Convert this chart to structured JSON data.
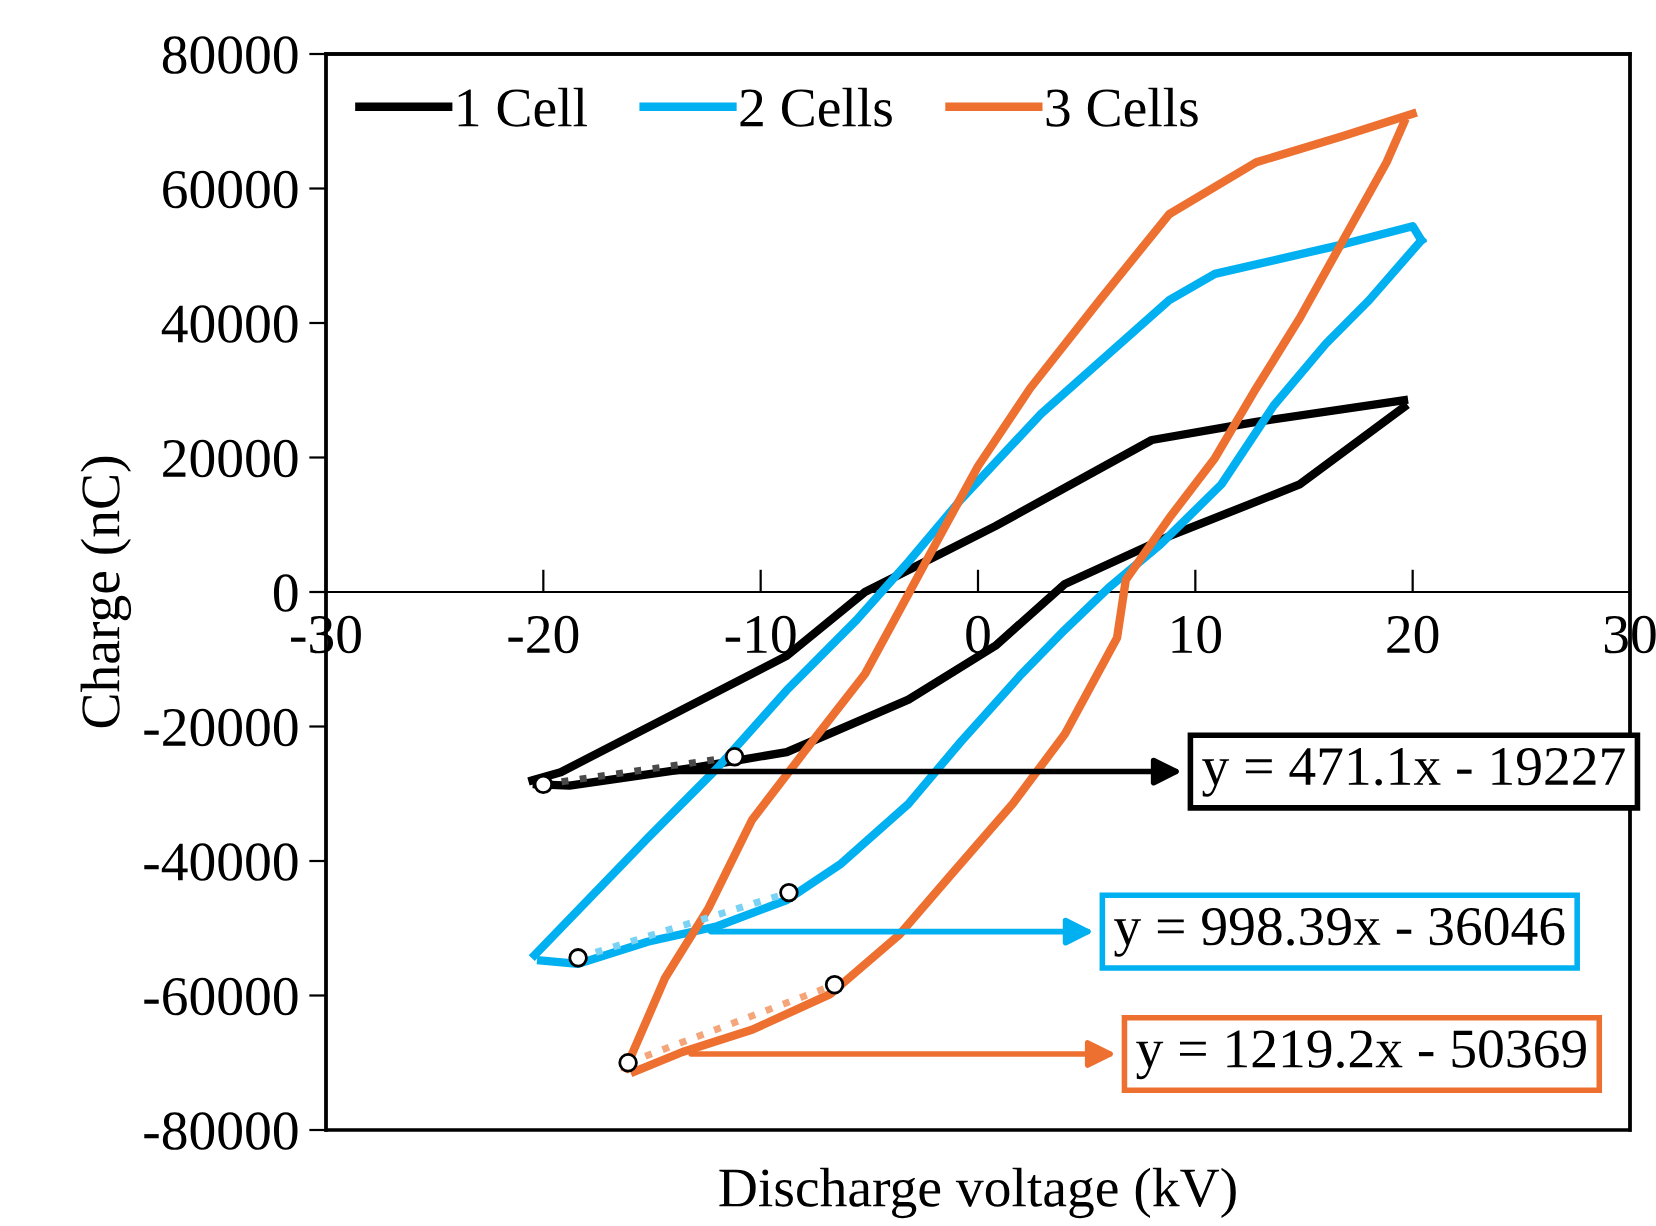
{
  "chart_data": {
    "type": "line",
    "xlabel": "Discharge voltage (kV)",
    "ylabel": "Charge (nC)",
    "xlim": [
      -30,
      30
    ],
    "xticks": [
      -30,
      -20,
      -10,
      0,
      10,
      20,
      30
    ],
    "ylim": [
      -80000,
      80000
    ],
    "yticks": [
      -80000,
      -60000,
      -40000,
      -20000,
      0,
      20000,
      40000,
      60000,
      80000
    ],
    "grid": false,
    "legend": "top left",
    "marker": "none",
    "line_style": "solid",
    "series": [
      {
        "name": "1 Cell",
        "color": "#000000",
        "x": [
          -20.5,
          -19.2,
          -8.8,
          -5.2,
          0.8,
          8,
          12.8,
          19.6
        ],
        "values": [
          -28000,
          -26800,
          -9500,
          0,
          9800,
          22600,
          25300,
          28500
        ]
      },
      {
        "color": "#000000",
        "x": [
          19.6,
          14.8,
          8.8,
          4,
          0.8,
          -3.2,
          -8.8,
          -13.2,
          -18.8,
          -20.3
        ],
        "values": [
          27500,
          16000,
          8300,
          1200,
          -8000,
          -16000,
          -23800,
          -26200,
          -28800,
          -28600
        ]
      },
      {
        "name": "2 Cells",
        "color": "#00b0f0",
        "x": [
          -20.4,
          -15.2,
          -12,
          -8.8,
          -5.6,
          -3.2,
          -0.8,
          2.9,
          8.8,
          10.9,
          16.8,
          20,
          20.4
        ],
        "values": [
          -54000,
          -36600,
          -26200,
          -14600,
          -4200,
          4500,
          13700,
          26500,
          43400,
          47300,
          51700,
          54400,
          52300
        ]
      },
      {
        "color": "#00b0f0",
        "x": [
          20.4,
          18,
          16,
          13.6,
          11.2,
          8.4,
          6,
          4,
          2,
          -0.8,
          -3.2,
          -6.3,
          -8.8,
          -12,
          -15.2,
          -18.4,
          -20.1
        ],
        "values": [
          52300,
          43400,
          36900,
          27700,
          16000,
          7100,
          600,
          -5600,
          -12200,
          -22300,
          -31500,
          -40400,
          -45800,
          -49700,
          -52000,
          -55300,
          -54800
        ]
      },
      {
        "name": "3 Cells",
        "color": "#ed7031",
        "x": [
          -16.2,
          -14.4,
          -12.4,
          -10.4,
          -8,
          -5.2,
          -3.2,
          -2.4,
          0,
          2.4,
          5.6,
          8.8,
          12.8,
          16.8,
          20
        ],
        "values": [
          -70800,
          -57400,
          -47000,
          -33900,
          -23800,
          -12200,
          -300,
          4500,
          18700,
          30300,
          43400,
          56200,
          63900,
          67800,
          71100
        ]
      },
      {
        "color": "#ed7031",
        "x": [
          19.6,
          18.8,
          16.8,
          14.8,
          12.8,
          10.9,
          8.8,
          6.8,
          6.4,
          4,
          1.6,
          -1.2,
          -3.6,
          -6.8,
          -10.4,
          -13.6,
          -15.8
        ],
        "values": [
          69800,
          63900,
          52300,
          40700,
          30300,
          19900,
          11000,
          1800,
          -6800,
          -21100,
          -31500,
          -41900,
          -50900,
          -59800,
          -65100,
          -68400,
          -71300
        ]
      },
      {
        "color": "#4a4a4a",
        "line_style": "dotted",
        "marker": "circle",
        "x": [
          -20,
          -11.2
        ],
        "values": [
          -28600,
          -24500
        ]
      },
      {
        "color": "#7ad3f5",
        "line_style": "dotted",
        "marker": "circle",
        "x": [
          -18.4,
          -8.7
        ],
        "values": [
          -54400,
          -44700
        ]
      },
      {
        "color": "#f4a67a",
        "line_style": "dotted",
        "marker": "circle",
        "x": [
          -16.1,
          -6.6
        ],
        "values": [
          -70000,
          -58400
        ]
      }
    ],
    "annotations": [
      {
        "text": "y = 471.1x - 19227",
        "x": -14,
        "y": -26700
      },
      {
        "text": "y = 998.39x - 36046",
        "x": -12.3,
        "y": -50500
      },
      {
        "text": "y = 1219.2x - 50369",
        "x": -13.2,
        "y": -68700
      }
    ]
  }
}
